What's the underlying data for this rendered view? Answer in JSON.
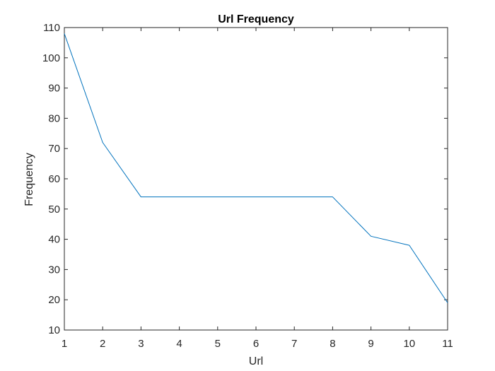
{
  "chart_data": {
    "type": "line",
    "title": "Url Frequency",
    "xlabel": "Url",
    "ylabel": "Frequency",
    "x": [
      1,
      2,
      3,
      4,
      5,
      6,
      7,
      8,
      9,
      10,
      11
    ],
    "xlim": [
      1,
      11
    ],
    "ylim": [
      10,
      110
    ],
    "xticks": [
      1,
      2,
      3,
      4,
      5,
      6,
      7,
      8,
      9,
      10,
      11
    ],
    "yticks": [
      10,
      20,
      30,
      40,
      50,
      60,
      70,
      80,
      90,
      100,
      110
    ],
    "grid": false,
    "series": [
      {
        "values": [
          108,
          72,
          54,
          54,
          54,
          54,
          54,
          54,
          41,
          38,
          19
        ],
        "color": "#0072BD"
      }
    ]
  }
}
